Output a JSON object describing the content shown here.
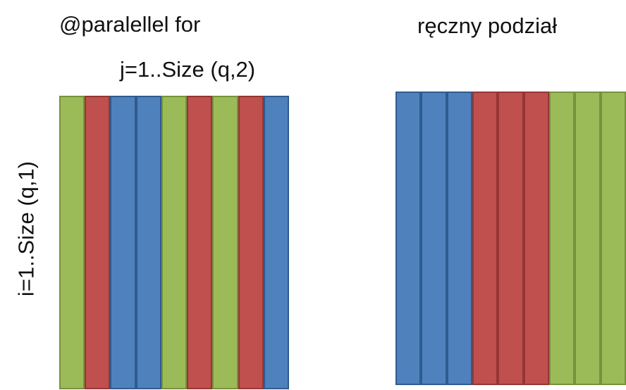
{
  "labels": {
    "left_title": "@paralellel for",
    "right_title": "ręczny podział",
    "j_axis": "j=1..Size (q,2)",
    "i_axis": "i=1..Size (q,1)"
  },
  "colors": {
    "green": "#9bbb59",
    "red": "#c0504d",
    "blue": "#4f81bd"
  },
  "left_stripes": [
    "green",
    "red",
    "blue",
    "blue",
    "green",
    "red",
    "green",
    "red",
    "blue"
  ],
  "right_stripes": [
    "blue",
    "blue",
    "blue",
    "red",
    "red",
    "red",
    "green",
    "green",
    "green"
  ]
}
